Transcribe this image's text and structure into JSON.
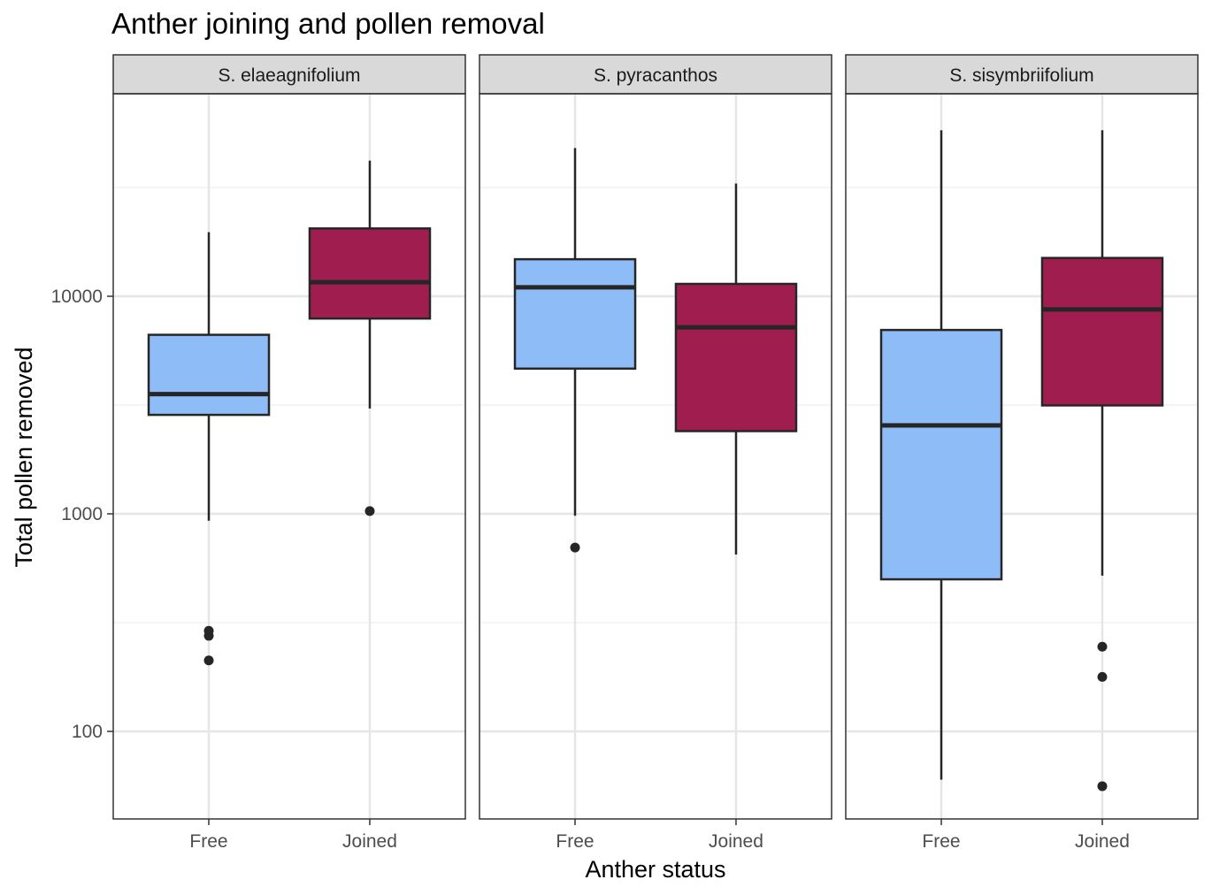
{
  "chart_data": {
    "type": "box",
    "title": "Anther joining and pollen removal",
    "xlabel": "Anther status",
    "ylabel": "Total pollen removed",
    "y_scale": "log10",
    "ylim": [
      45,
      85000
    ],
    "yticks": [
      100,
      1000,
      10000
    ],
    "ytick_labels": [
      "100",
      "1000",
      "10000"
    ],
    "categories": [
      "Free",
      "Joined"
    ],
    "category_colors": {
      "Free": "#8ebcf7",
      "Joined": "#a01e4f"
    },
    "grid": true,
    "panels": [
      {
        "label": "S. elaeagnifolium",
        "boxes": [
          {
            "category": "Free",
            "whisker_low": 930,
            "q1": 2850,
            "median": 3550,
            "q3": 6650,
            "whisker_high": 19700,
            "outliers": [
              290,
              275,
              212
            ]
          },
          {
            "category": "Joined",
            "whisker_low": 3050,
            "q1": 7900,
            "median": 11600,
            "q3": 20500,
            "whisker_high": 42000,
            "outliers": [
              1030
            ]
          }
        ]
      },
      {
        "label": "S. pyracanthos",
        "boxes": [
          {
            "category": "Free",
            "whisker_low": 980,
            "q1": 4650,
            "median": 11000,
            "q3": 14800,
            "whisker_high": 48000,
            "outliers": [
              700
            ]
          },
          {
            "category": "Joined",
            "whisker_low": 650,
            "q1": 2400,
            "median": 7200,
            "q3": 11400,
            "whisker_high": 33000,
            "outliers": []
          }
        ]
      },
      {
        "label": "S. sisymbriifolium",
        "boxes": [
          {
            "category": "Free",
            "whisker_low": 60,
            "q1": 500,
            "median": 2550,
            "q3": 7000,
            "whisker_high": 58000,
            "outliers": []
          },
          {
            "category": "Joined",
            "whisker_low": 520,
            "q1": 3150,
            "median": 8700,
            "q3": 15000,
            "whisker_high": 58000,
            "outliers": [
              245,
              178,
              56
            ]
          }
        ]
      }
    ]
  }
}
